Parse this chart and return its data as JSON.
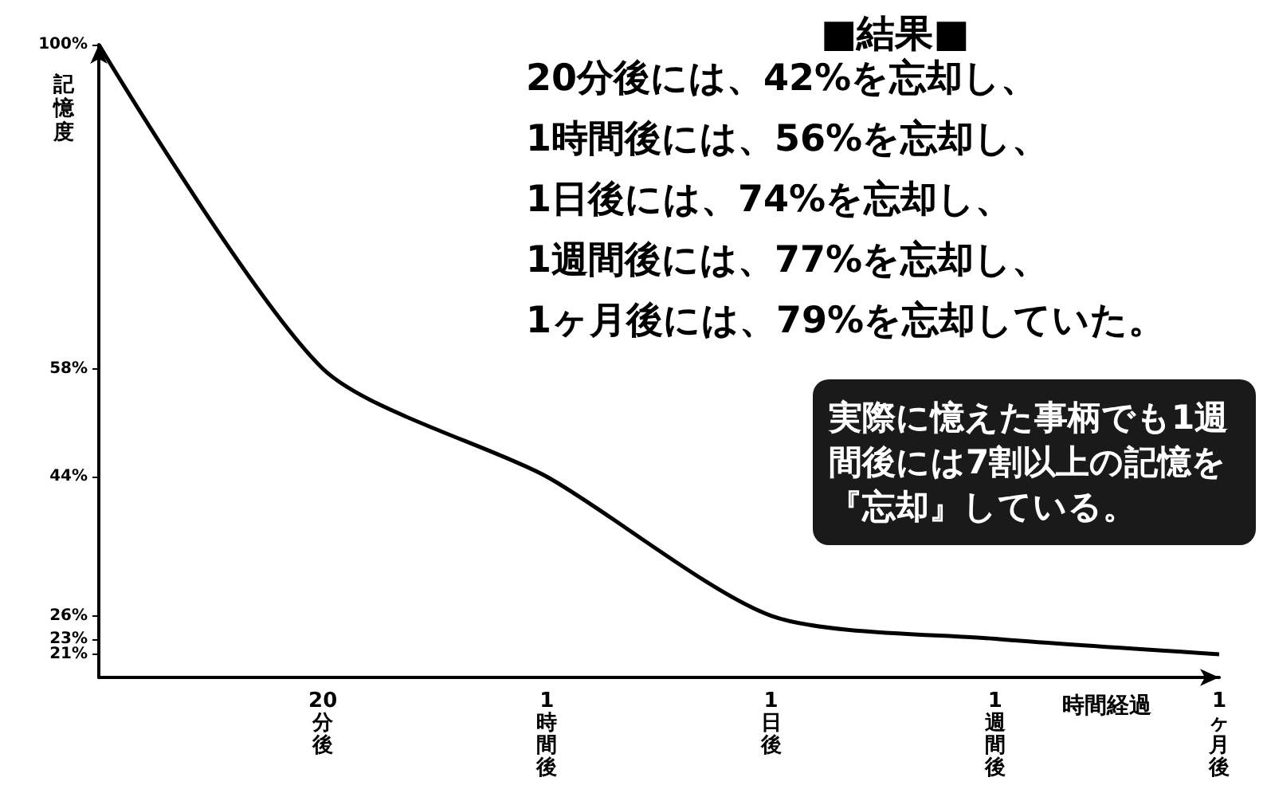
{
  "chart_data": {
    "type": "line",
    "title": "■結果■",
    "xlabel": "時間経過",
    "ylabel": "記憶度",
    "categories": [
      null,
      "20分後",
      "1時間後",
      "1日後",
      "1週間後",
      "1ヶ月後"
    ],
    "series": [
      {
        "color": "#000000",
        "values": [
          100,
          58,
          44,
          26,
          23,
          21
        ]
      }
    ],
    "ylim": [
      18,
      100
    ],
    "yticks": [
      {
        "value": 100,
        "label": "100%"
      },
      {
        "value": 58,
        "label": "58%"
      },
      {
        "value": 44,
        "label": "44%"
      },
      {
        "value": 26,
        "label": "26%"
      },
      {
        "value": 23,
        "label": "23%"
      },
      {
        "value": 21,
        "label": "21%"
      }
    ],
    "marker": "none",
    "line_style": "solid",
    "grid": false,
    "annotations": [
      "20分後には、42%を忘却し、",
      "1時間後には、56%を忘却し、",
      "1日後には、74%を忘却し、",
      "1週間後には、77%を忘却し、",
      "1ヶ月後には、79%を忘却していた。",
      "実際に憶えた事柄でも1週間後には7割以上の記憶を『忘却』している。"
    ]
  }
}
